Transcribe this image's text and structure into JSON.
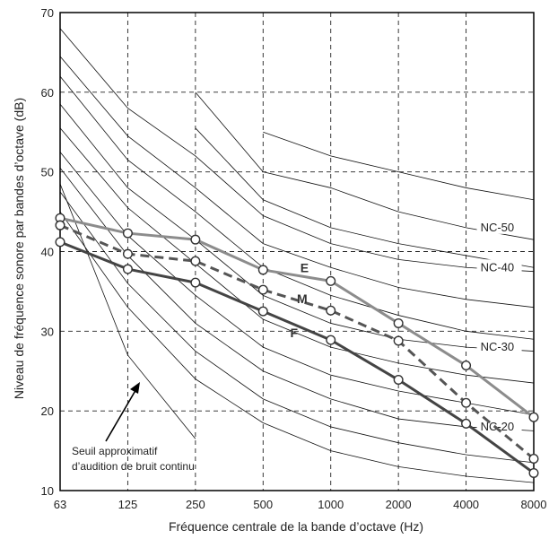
{
  "chart_data": {
    "type": "line",
    "title": "",
    "xlabel": "Fréquence centrale de la bande d’octave (Hz)",
    "ylabel": "Niveau de fréquence sonore par bandes d’octave (dB)",
    "x_scale": "log2",
    "categories": [
      "63",
      "125",
      "250",
      "500",
      "1000",
      "2000",
      "4000",
      "8000"
    ],
    "ylim": [
      10,
      70
    ],
    "yticks": [
      10,
      20,
      30,
      40,
      50,
      60,
      70
    ],
    "grid": true,
    "series": [
      {
        "name": "E",
        "color": "#8c8c8c",
        "dash": false,
        "values": [
          44.2,
          42.3,
          41.5,
          37.7,
          36.3,
          31.0,
          25.7,
          19.2
        ],
        "extra_point": {
          "x_index": 0,
          "value": 43.3
        }
      },
      {
        "name": "M",
        "color": "#555555",
        "dash": true,
        "values": [
          43.3,
          39.7,
          38.8,
          35.2,
          32.6,
          28.8,
          21.0,
          14.0
        ]
      },
      {
        "name": "F",
        "color": "#444444",
        "dash": false,
        "values": [
          41.2,
          37.8,
          36.1,
          32.5,
          28.9,
          23.9,
          18.4,
          12.2
        ]
      }
    ],
    "nc_curves": [
      {
        "label": "",
        "values": [
          null,
          null,
          null,
          55.0,
          52.0,
          50.0,
          48.0,
          46.5
        ]
      },
      {
        "label": "NC-50",
        "values": [
          null,
          null,
          60.0,
          50.0,
          48.0,
          45.0,
          43.0,
          41.5
        ]
      },
      {
        "label": "",
        "values": [
          null,
          null,
          55.5,
          46.5,
          43.0,
          41.0,
          39.5,
          38.0
        ]
      },
      {
        "label": "NC-40",
        "values": [
          68.0,
          58.0,
          52.0,
          44.5,
          41.0,
          39.0,
          38.0,
          37.5
        ]
      },
      {
        "label": "",
        "values": [
          64.5,
          54.5,
          48.0,
          41.0,
          38.0,
          35.5,
          34.0,
          33.0
        ]
      },
      {
        "label": "",
        "values": [
          62.0,
          51.5,
          45.0,
          38.0,
          34.5,
          32.0,
          30.0,
          29.0
        ]
      },
      {
        "label": "NC-30",
        "values": [
          58.5,
          48.0,
          41.5,
          34.5,
          31.0,
          29.0,
          28.0,
          27.5
        ]
      },
      {
        "label": "",
        "values": [
          55.5,
          45.5,
          38.5,
          31.5,
          28.0,
          26.0,
          24.5,
          23.5
        ]
      },
      {
        "label": "",
        "values": [
          52.5,
          42.0,
          34.5,
          28.0,
          24.5,
          22.5,
          21.0,
          19.5
        ]
      },
      {
        "label": "NC-20",
        "values": [
          50.5,
          39.5,
          31.0,
          25.0,
          21.5,
          19.0,
          18.0,
          17.5
        ]
      },
      {
        "label": "",
        "values": [
          47.5,
          36.0,
          27.5,
          21.5,
          18.0,
          16.0,
          14.5,
          13.5
        ]
      },
      {
        "label": "",
        "values": [
          45.0,
          33.0,
          24.0,
          18.5,
          15.0,
          13.0,
          11.8,
          11.0
        ]
      },
      {
        "label": "",
        "values": [
          48.5,
          27.0,
          16.5,
          null,
          null,
          null,
          null,
          null
        ]
      }
    ],
    "threshold_annotation": {
      "lines": [
        "Seuil approximatif",
        "d’audition de bruit continu"
      ]
    }
  }
}
